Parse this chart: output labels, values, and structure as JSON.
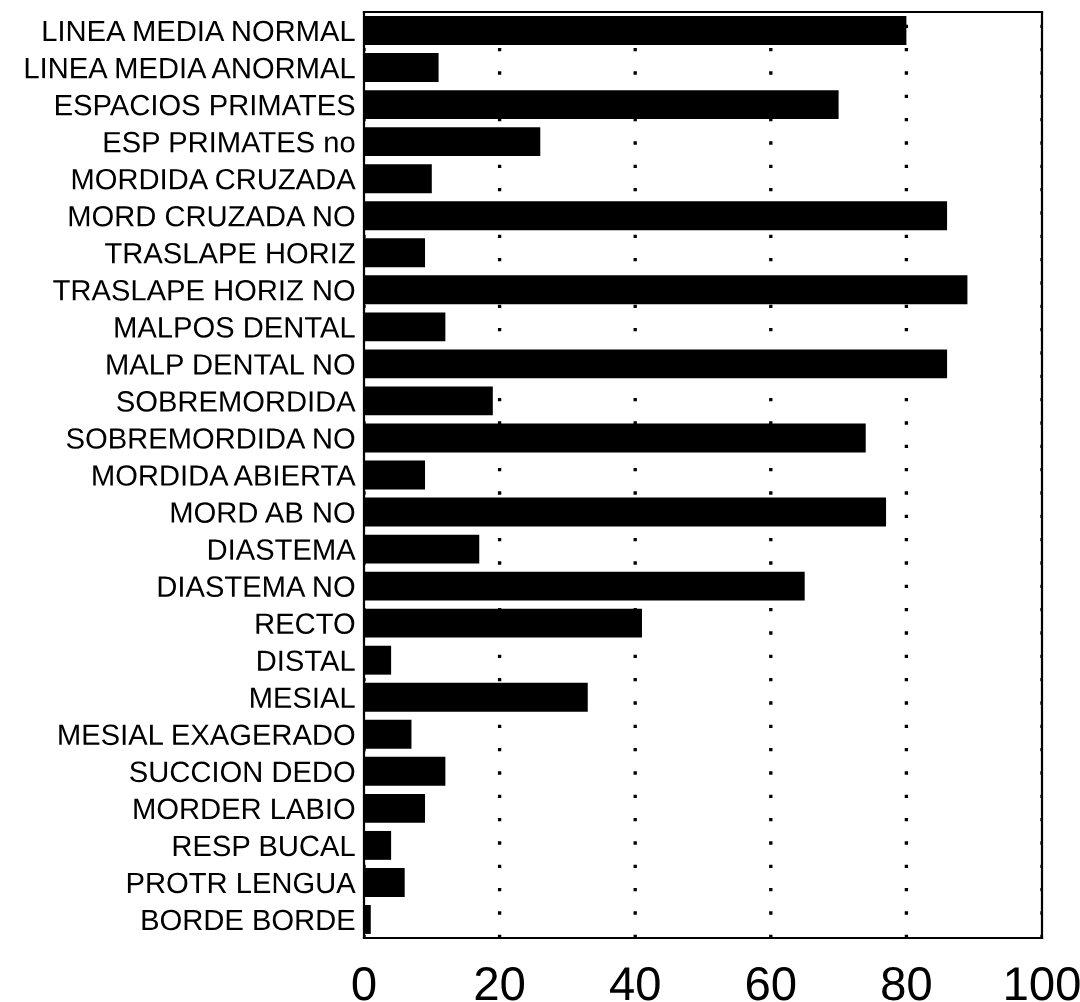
{
  "chart_data": {
    "type": "bar",
    "orientation": "horizontal",
    "categories": [
      "LINEA MEDIA NORMAL",
      "LINEA MEDIA ANORMAL",
      "ESPACIOS PRIMATES",
      "ESP PRIMATES no",
      "MORDIDA CRUZADA",
      "MORD CRUZADA NO",
      "TRASLAPE HORIZ",
      "TRASLAPE HORIZ NO",
      "MALPOS DENTAL",
      "MALP DENTAL NO",
      "SOBREMORDIDA",
      "SOBREMORDIDA NO",
      "MORDIDA ABIERTA",
      "MORD AB NO",
      "DIASTEMA",
      "DIASTEMA NO",
      "RECTO",
      "DISTAL",
      "MESIAL",
      "MESIAL EXAGERADO",
      "SUCCION DEDO",
      "MORDER LABIO",
      "RESP BUCAL",
      "PROTR LENGUA",
      "BORDE BORDE"
    ],
    "values": [
      80,
      11,
      70,
      26,
      10,
      86,
      9,
      89,
      12,
      86,
      19,
      74,
      9,
      77,
      17,
      65,
      41,
      4,
      33,
      7,
      12,
      9,
      4,
      6,
      1
    ],
    "color": "#000000",
    "xlim": [
      0,
      100
    ],
    "xticks": [
      0,
      20,
      40,
      60,
      80,
      100
    ],
    "grid": "x"
  }
}
